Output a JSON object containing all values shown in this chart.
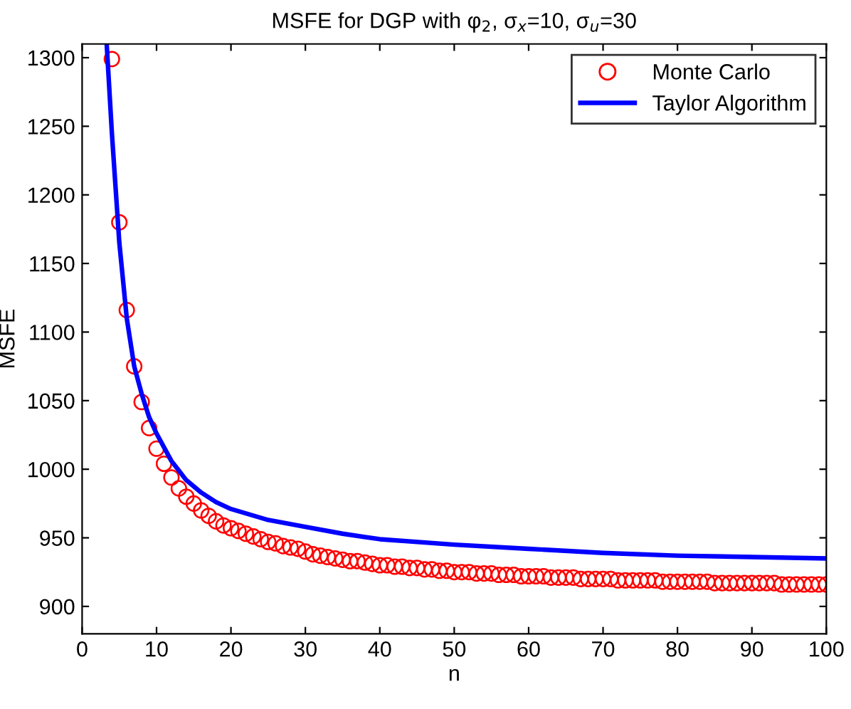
{
  "chart_data": {
    "type": "line",
    "title": "MSFE for DGP with φ$_{2}$, σ$_{x}$=10, σ$_{u}$=30",
    "xlabel": "n",
    "ylabel": "MSFE",
    "xlim": [
      0,
      100
    ],
    "xticks": [
      0,
      10,
      20,
      30,
      40,
      50,
      60,
      70,
      80,
      90,
      100
    ],
    "ylim": [
      880,
      1310
    ],
    "yticks": [
      900,
      950,
      1000,
      1050,
      1100,
      1150,
      1200,
      1250,
      1300
    ],
    "grid": false,
    "legend": "top right",
    "series": [
      {
        "name": "Monte Carlo",
        "type": "scatter",
        "marker": "circle",
        "color": "#ff0000",
        "x": [
          4,
          5,
          6,
          7,
          8,
          9,
          10,
          11,
          12,
          13,
          14,
          15,
          16,
          17,
          18,
          19,
          20,
          21,
          22,
          23,
          24,
          25,
          26,
          27,
          28,
          29,
          30,
          31,
          32,
          33,
          34,
          35,
          36,
          37,
          38,
          39,
          40,
          41,
          42,
          43,
          44,
          45,
          46,
          47,
          48,
          49,
          50,
          51,
          52,
          53,
          54,
          55,
          56,
          57,
          58,
          59,
          60,
          61,
          62,
          63,
          64,
          65,
          66,
          67,
          68,
          69,
          70,
          71,
          72,
          73,
          74,
          75,
          76,
          77,
          78,
          79,
          80,
          81,
          82,
          83,
          84,
          85,
          86,
          87,
          88,
          89,
          90,
          91,
          92,
          93,
          94,
          95,
          96,
          97,
          98,
          99,
          100
        ],
        "values": [
          1299,
          1180,
          1116,
          1075,
          1049,
          1030,
          1015,
          1004,
          994,
          986,
          980,
          975,
          970,
          966,
          962,
          959,
          957,
          955,
          953,
          951,
          949,
          947,
          946,
          944,
          943,
          942,
          940,
          938,
          937,
          936,
          935,
          934,
          933,
          933,
          932,
          931,
          930,
          930,
          929,
          929,
          928,
          928,
          927,
          927,
          926,
          926,
          925,
          925,
          925,
          924,
          924,
          924,
          923,
          923,
          923,
          922,
          922,
          922,
          922,
          921,
          921,
          921,
          921,
          920,
          920,
          920,
          920,
          920,
          919,
          919,
          919,
          919,
          919,
          919,
          918,
          918,
          918,
          918,
          918,
          918,
          918,
          917,
          917,
          917,
          917,
          917,
          917,
          917,
          917,
          917,
          916,
          916,
          916,
          916,
          916,
          916,
          916
        ]
      },
      {
        "name": "Taylor Algorithm",
        "marker": "none",
        "line_style": "solid",
        "color": "#0000ff",
        "x": [
          3.3,
          4,
          5,
          6,
          7,
          8,
          9,
          10,
          12,
          14,
          16,
          18,
          20,
          25,
          30,
          35,
          40,
          50,
          60,
          70,
          80,
          90,
          100
        ],
        "values": [
          1310,
          1245,
          1165,
          1110,
          1075,
          1055,
          1038,
          1026,
          1006,
          992,
          983,
          976,
          971,
          963,
          958,
          953,
          949,
          945,
          942,
          939,
          937,
          936,
          935
        ]
      }
    ]
  }
}
